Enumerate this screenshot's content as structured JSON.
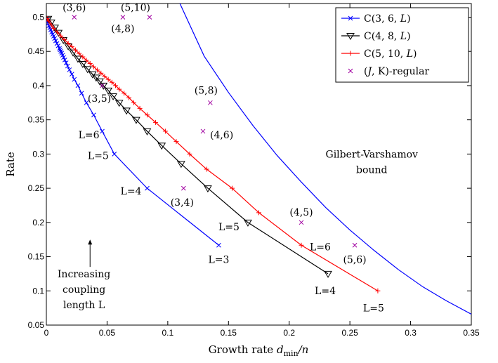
{
  "chart_data": {
    "type": "line",
    "xlabel": "Growth rate",
    "xlabel_math": "d",
    "xlabel_sub": "min",
    "xlabel_tail": "/n",
    "ylabel": "Rate",
    "xlim": [
      0,
      0.35
    ],
    "ylim": [
      0.05,
      0.52
    ],
    "x_ticks": [
      0,
      0.05,
      0.1,
      0.15,
      0.2,
      0.25,
      0.3,
      0.35
    ],
    "x_tick_labels": [
      "0",
      "0.05",
      "0.1",
      "0.15",
      "0.2",
      "0.25",
      "0.3",
      "0.35"
    ],
    "y_ticks": [
      0.05,
      0.1,
      0.15,
      0.2,
      0.25,
      0.3,
      0.35,
      0.4,
      0.45,
      0.5
    ],
    "y_tick_labels": [
      "0.05",
      "0.1",
      "0.15",
      "0.2",
      "0.25",
      "0.3",
      "0.35",
      "0.4",
      "0.45",
      "0.5"
    ],
    "grid": false,
    "legend_position": "top-right",
    "series": [
      {
        "name": "C(3, 6, L)",
        "color": "#0000ff",
        "marker": "x",
        "points": [
          [
            0.142,
            0.1667
          ],
          [
            0.083,
            0.25
          ],
          [
            0.056,
            0.3
          ],
          [
            0.046,
            0.3333
          ],
          [
            0.039,
            0.3571
          ],
          [
            0.033,
            0.375
          ],
          [
            0.029,
            0.3889
          ],
          [
            0.026,
            0.4
          ],
          [
            0.023,
            0.4091
          ],
          [
            0.021,
            0.4167
          ],
          [
            0.019,
            0.4231
          ],
          [
            0.0175,
            0.4286
          ],
          [
            0.0163,
            0.4333
          ],
          [
            0.0152,
            0.4375
          ],
          [
            0.0142,
            0.4412
          ],
          [
            0.0134,
            0.4444
          ],
          [
            0.0126,
            0.4474
          ],
          [
            0.0119,
            0.45
          ],
          [
            0.0113,
            0.4524
          ],
          [
            0.0108,
            0.4545
          ],
          [
            0.0098,
            0.4583
          ],
          [
            0.0087,
            0.4615
          ],
          [
            0.0077,
            0.4655
          ],
          [
            0.0068,
            0.4688
          ],
          [
            0.006,
            0.4722
          ],
          [
            0.0052,
            0.475
          ],
          [
            0.0044,
            0.4783
          ],
          [
            0.0036,
            0.4815
          ],
          [
            0.0028,
            0.4844
          ],
          [
            0.0021,
            0.4875
          ],
          [
            0.0014,
            0.4906
          ],
          [
            0.0007,
            0.4944
          ],
          [
            0.0003,
            0.4974
          ]
        ]
      },
      {
        "name": "C(4, 8, L)",
        "color": "#000000",
        "marker": "triangle-down",
        "points": [
          [
            0.232,
            0.125
          ],
          [
            0.166,
            0.2
          ],
          [
            0.133,
            0.25
          ],
          [
            0.111,
            0.2857
          ],
          [
            0.095,
            0.3125
          ],
          [
            0.083,
            0.3333
          ],
          [
            0.074,
            0.35
          ],
          [
            0.066,
            0.3636
          ],
          [
            0.06,
            0.375
          ],
          [
            0.055,
            0.3846
          ],
          [
            0.051,
            0.3929
          ],
          [
            0.047,
            0.4
          ],
          [
            0.044,
            0.4063
          ],
          [
            0.041,
            0.4118
          ],
          [
            0.038,
            0.4167
          ],
          [
            0.034,
            0.4242
          ],
          [
            0.03,
            0.4318
          ],
          [
            0.026,
            0.4394
          ],
          [
            0.022,
            0.4485
          ],
          [
            0.018,
            0.4576
          ],
          [
            0.014,
            0.4667
          ],
          [
            0.01,
            0.4773
          ],
          [
            0.007,
            0.4848
          ],
          [
            0.004,
            0.4924
          ],
          [
            0.0015,
            0.4977
          ]
        ]
      },
      {
        "name": "C(5, 10, L)",
        "color": "#ff0000",
        "marker": "plus",
        "points": [
          [
            0.273,
            0.1
          ],
          [
            0.21,
            0.1667
          ],
          [
            0.175,
            0.2143
          ],
          [
            0.153,
            0.25
          ],
          [
            0.132,
            0.2778
          ],
          [
            0.118,
            0.3
          ],
          [
            0.107,
            0.3182
          ],
          [
            0.098,
            0.3333
          ],
          [
            0.09,
            0.3462
          ],
          [
            0.083,
            0.3571
          ],
          [
            0.077,
            0.3667
          ],
          [
            0.072,
            0.375
          ],
          [
            0.068,
            0.3824
          ],
          [
            0.064,
            0.3889
          ],
          [
            0.06,
            0.3947
          ],
          [
            0.057,
            0.4
          ],
          [
            0.054,
            0.4048
          ],
          [
            0.051,
            0.4091
          ],
          [
            0.048,
            0.4135
          ],
          [
            0.045,
            0.4182
          ],
          [
            0.042,
            0.4228
          ],
          [
            0.039,
            0.4275
          ],
          [
            0.036,
            0.4322
          ],
          [
            0.033,
            0.437
          ],
          [
            0.03,
            0.442
          ],
          [
            0.027,
            0.447
          ],
          [
            0.024,
            0.452
          ],
          [
            0.021,
            0.457
          ],
          [
            0.018,
            0.462
          ],
          [
            0.015,
            0.467
          ],
          [
            0.012,
            0.4725
          ],
          [
            0.009,
            0.478
          ],
          [
            0.006,
            0.4838
          ],
          [
            0.004,
            0.4888
          ],
          [
            0.002,
            0.4944
          ],
          [
            0.0007,
            0.4981
          ]
        ]
      },
      {
        "name": "(J, K)-regular",
        "color": "#a000a0",
        "marker": "x",
        "line": false,
        "points": [
          [
            0.023,
            0.5
          ],
          [
            0.063,
            0.5
          ],
          [
            0.085,
            0.5
          ],
          [
            0.046,
            0.4
          ],
          [
            0.135,
            0.375
          ],
          [
            0.129,
            0.3333
          ],
          [
            0.113,
            0.25
          ],
          [
            0.21,
            0.2
          ],
          [
            0.254,
            0.1667
          ]
        ]
      },
      {
        "name": "Gilbert-Varshamov bound",
        "color": "#0000ff",
        "marker": "none",
        "show_in_legend": false,
        "points": [
          [
            0.11,
            0.52
          ],
          [
            0.13,
            0.443
          ],
          [
            0.15,
            0.39
          ],
          [
            0.17,
            0.342
          ],
          [
            0.19,
            0.298
          ],
          [
            0.21,
            0.259
          ],
          [
            0.23,
            0.222
          ],
          [
            0.25,
            0.189
          ],
          [
            0.27,
            0.159
          ],
          [
            0.29,
            0.131
          ],
          [
            0.31,
            0.106
          ],
          [
            0.33,
            0.085
          ],
          [
            0.35,
            0.066
          ]
        ]
      }
    ],
    "legend": [
      {
        "pre": "C(3, 6, ",
        "it": "L",
        "post": ")",
        "series": 0
      },
      {
        "pre": "C(4, 8, ",
        "it": "L",
        "post": ")",
        "series": 1
      },
      {
        "pre": "C(5, 10, ",
        "it": "L",
        "post": ")",
        "series": 2
      },
      {
        "pre": "(",
        "it": "J",
        "post": ", K)-regular",
        "series": 3
      }
    ],
    "annotations": [
      {
        "text": "(3,6)",
        "x": 0.023,
        "y": 0.5,
        "anchor": "middle",
        "dx": 0,
        "dy": -14
      },
      {
        "text": "(4,8)",
        "x": 0.063,
        "y": 0.5,
        "anchor": "middle",
        "dx": 0,
        "dy": 16
      },
      {
        "text": "(5,10)",
        "x": 0.085,
        "y": 0.5,
        "anchor": "middle",
        "dx": -20,
        "dy": -14
      },
      {
        "text": "(3,5)",
        "x": 0.046,
        "y": 0.4,
        "anchor": "middle",
        "dx": -4,
        "dy": 18
      },
      {
        "text": "(5,8)",
        "x": 0.135,
        "y": 0.375,
        "anchor": "middle",
        "dx": -6,
        "dy": -18
      },
      {
        "text": "(4,6)",
        "x": 0.129,
        "y": 0.3333,
        "anchor": "start",
        "dx": 10,
        "dy": 5
      },
      {
        "text": "(3,4)",
        "x": 0.113,
        "y": 0.25,
        "anchor": "middle",
        "dx": -2,
        "dy": 20
      },
      {
        "text": "(4,5)",
        "x": 0.21,
        "y": 0.2,
        "anchor": "middle",
        "dx": 0,
        "dy": -15
      },
      {
        "text": "(5,6)",
        "x": 0.254,
        "y": 0.1667,
        "anchor": "middle",
        "dx": 0,
        "dy": 20
      },
      {
        "text": "L=6",
        "x": 0.046,
        "y": 0.3333,
        "anchor": "end",
        "dx": -4,
        "dy": 5
      },
      {
        "text": "L=5",
        "x": 0.056,
        "y": 0.3,
        "anchor": "end",
        "dx": -8,
        "dy": 2
      },
      {
        "text": "L=4",
        "x": 0.083,
        "y": 0.25,
        "anchor": "end",
        "dx": -8,
        "dy": 4
      },
      {
        "text": "L=3",
        "x": 0.142,
        "y": 0.1667,
        "anchor": "middle",
        "dx": 0,
        "dy": 20
      },
      {
        "text": "L=5",
        "x": 0.166,
        "y": 0.2,
        "anchor": "end",
        "dx": -12,
        "dy": 6
      },
      {
        "text": "L=4",
        "x": 0.232,
        "y": 0.125,
        "anchor": "middle",
        "dx": -4,
        "dy": 24
      },
      {
        "text": "L=6",
        "x": 0.21,
        "y": 0.1667,
        "anchor": "start",
        "dx": 12,
        "dy": 2
      },
      {
        "text": "L=5",
        "x": 0.273,
        "y": 0.1,
        "anchor": "middle",
        "dx": -6,
        "dy": 24
      },
      {
        "text": "Gilbert-Varshamov",
        "x": 0.268,
        "y": 0.3,
        "anchor": "middle",
        "dx": 0,
        "dy": 0
      },
      {
        "text": "bound",
        "x": 0.268,
        "y": 0.3,
        "anchor": "middle",
        "dx": 0,
        "dy": 22
      },
      {
        "text": "Increasing",
        "x": 0.031,
        "y": 0.125,
        "anchor": "middle",
        "dx": 0,
        "dy": 0
      },
      {
        "text": "coupling",
        "x": 0.031,
        "y": 0.125,
        "anchor": "middle",
        "dx": 0,
        "dy": 22
      },
      {
        "text": "length L",
        "x": 0.031,
        "y": 0.125,
        "anchor": "middle",
        "dx": 0,
        "dy": 44
      }
    ],
    "arrow": {
      "x": 0.036,
      "y_from": 0.135,
      "y_to": 0.175
    }
  }
}
